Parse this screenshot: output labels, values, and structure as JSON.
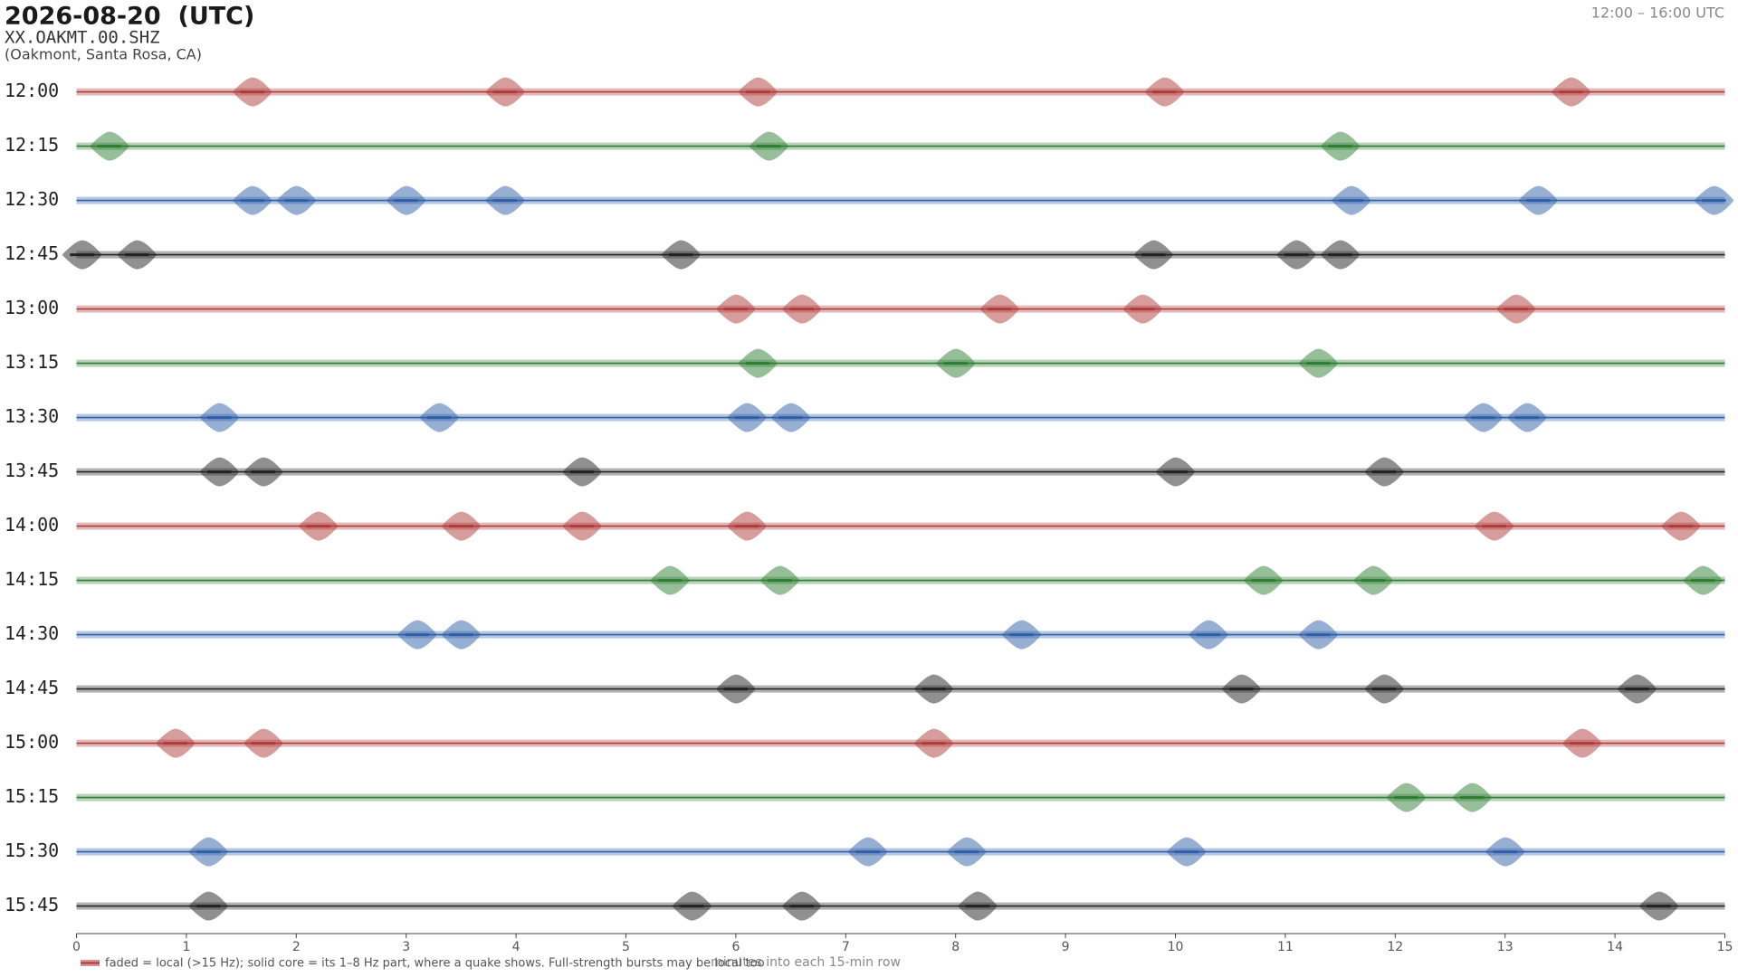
{
  "chart_data": {
    "type": "helicorder",
    "title": "2026-08-20  (UTC)",
    "station": "XX.OAKMT.00.SHZ",
    "location": "(Oakmont, Santa Rosa, CA)",
    "time_range": "12:00 – 16:00 UTC",
    "xlabel": "minutes into each 15-min row",
    "legend": "faded = local (>15 Hz); solid core = its 1–8 Hz part, where a quake shows. Full-strength bursts may be local too",
    "legend_color": "#b03a3a",
    "xlim": [
      0,
      15
    ],
    "xticks": [
      0,
      1,
      2,
      3,
      4,
      5,
      6,
      7,
      8,
      9,
      10,
      11,
      12,
      13,
      14,
      15
    ],
    "rows": [
      {
        "label": "12:00",
        "color": "#b03a3a",
        "bursts": [
          1.6,
          3.9,
          6.2,
          9.9,
          13.6
        ]
      },
      {
        "label": "12:15",
        "color": "#2e7d32",
        "bursts": [
          0.3,
          6.3,
          11.5
        ]
      },
      {
        "label": "12:30",
        "color": "#2f5fa8",
        "bursts": [
          1.6,
          2.0,
          3.0,
          3.9,
          11.6,
          13.3,
          14.9
        ]
      },
      {
        "label": "12:45",
        "color": "#222222",
        "bursts": [
          0.05,
          0.55,
          5.5,
          9.8,
          11.1,
          11.5
        ]
      },
      {
        "label": "13:00",
        "color": "#b03a3a",
        "bursts": [
          6.0,
          6.6,
          8.4,
          9.7,
          13.1
        ]
      },
      {
        "label": "13:15",
        "color": "#2e7d32",
        "bursts": [
          6.2,
          8.0,
          11.3
        ]
      },
      {
        "label": "13:30",
        "color": "#2f5fa8",
        "bursts": [
          1.3,
          3.3,
          6.1,
          6.5,
          12.8,
          13.2
        ]
      },
      {
        "label": "13:45",
        "color": "#222222",
        "bursts": [
          1.3,
          1.7,
          4.6,
          10.0,
          11.9
        ]
      },
      {
        "label": "14:00",
        "color": "#b03a3a",
        "bursts": [
          2.2,
          3.5,
          4.6,
          6.1,
          12.9,
          14.6
        ]
      },
      {
        "label": "14:15",
        "color": "#2e7d32",
        "bursts": [
          5.4,
          6.4,
          10.8,
          11.8,
          14.8
        ]
      },
      {
        "label": "14:30",
        "color": "#2f5fa8",
        "bursts": [
          3.1,
          3.5,
          8.6,
          10.3,
          11.3
        ]
      },
      {
        "label": "14:45",
        "color": "#222222",
        "bursts": [
          6.0,
          7.8,
          10.6,
          11.9,
          14.2
        ]
      },
      {
        "label": "15:00",
        "color": "#b03a3a",
        "bursts": [
          0.9,
          1.7,
          7.8,
          13.7
        ]
      },
      {
        "label": "15:15",
        "color": "#2e7d32",
        "bursts": [
          12.1,
          12.7
        ]
      },
      {
        "label": "15:30",
        "color": "#2f5fa8",
        "bursts": [
          1.2,
          7.2,
          8.1,
          10.1,
          13.0
        ]
      },
      {
        "label": "15:45",
        "color": "#222222",
        "bursts": [
          1.2,
          5.6,
          6.6,
          8.2,
          14.4
        ]
      }
    ]
  }
}
